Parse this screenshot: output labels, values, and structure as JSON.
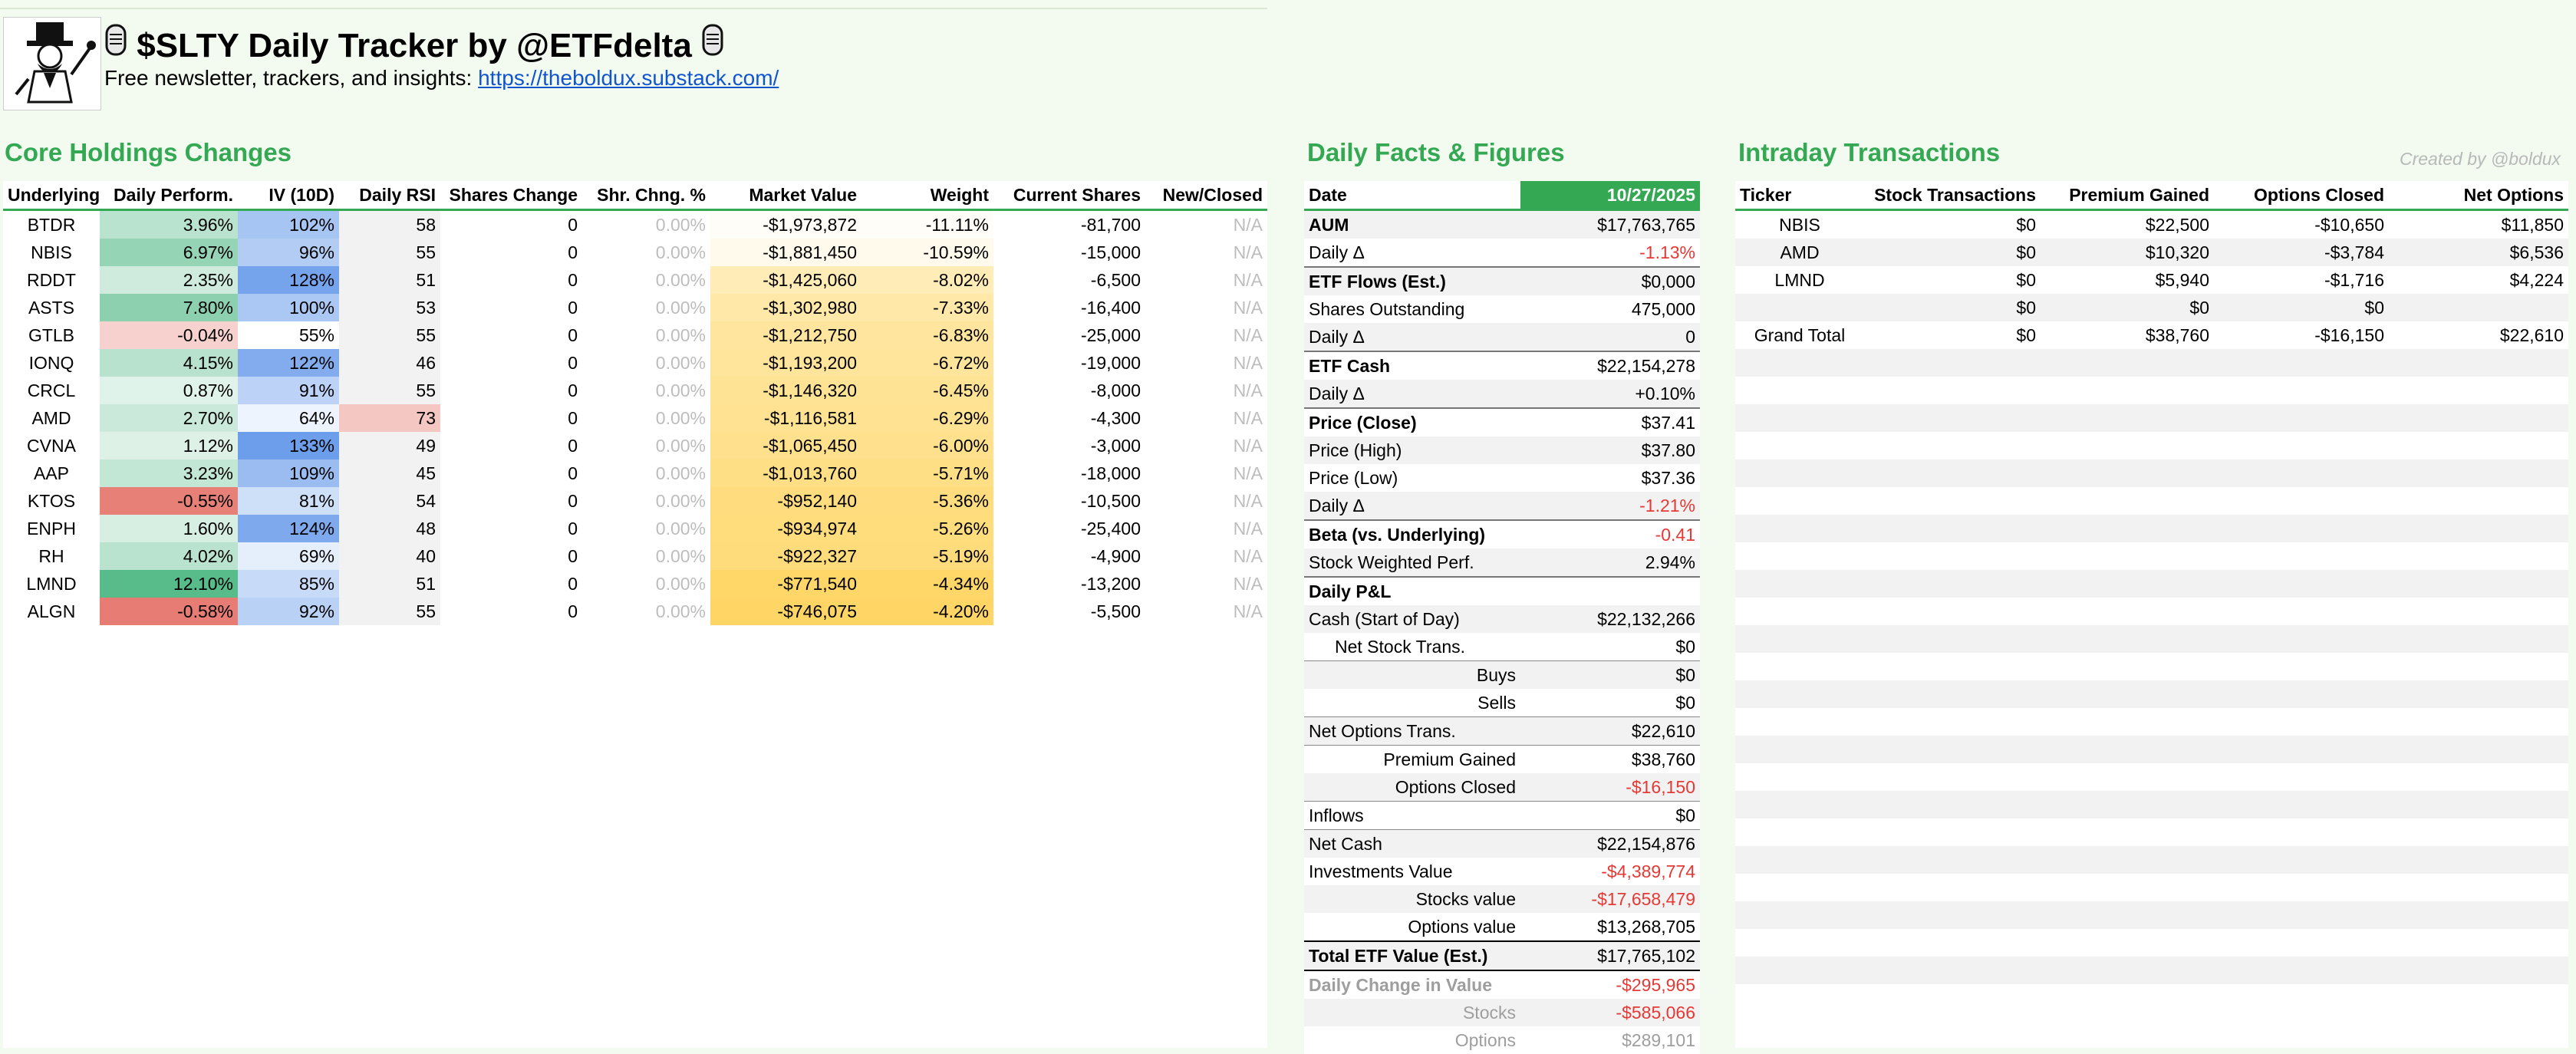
{
  "header": {
    "title": "$SLTY Daily Tracker by @ETFdelta",
    "subtitle_text": "Free newsletter, trackers, and insights: ",
    "subtitle_link": "https://theboldux.substack.com/",
    "logo_icon": "monopoly-man-logo",
    "title_icon": "microphone-icon"
  },
  "core": {
    "title": "Core Holdings Changes",
    "headers": [
      "Underlying",
      "Daily Perform.",
      "IV (10D)",
      "Daily RSI",
      "Shares Change",
      "Shr. Chng. %",
      "Market Value",
      "Weight",
      "Current Shares",
      "New/Closed"
    ],
    "rows": [
      {
        "ticker": "BTDR",
        "perf": "3.96%",
        "perf_num": 3.96,
        "iv": "102%",
        "iv_num": 102,
        "rsi": "58",
        "rsi_num": 58,
        "shares_change": "0",
        "shr_pct": "0.00%",
        "mv": "-$1,973,872",
        "weight": "-11.11%",
        "weight_num": 11.11,
        "shares": "-81,700",
        "newclosed": "N/A"
      },
      {
        "ticker": "NBIS",
        "perf": "6.97%",
        "perf_num": 6.97,
        "iv": "96%",
        "iv_num": 96,
        "rsi": "55",
        "rsi_num": 55,
        "shares_change": "0",
        "shr_pct": "0.00%",
        "mv": "-$1,881,450",
        "weight": "-10.59%",
        "weight_num": 10.59,
        "shares": "-15,000",
        "newclosed": "N/A"
      },
      {
        "ticker": "RDDT",
        "perf": "2.35%",
        "perf_num": 2.35,
        "iv": "128%",
        "iv_num": 128,
        "rsi": "51",
        "rsi_num": 51,
        "shares_change": "0",
        "shr_pct": "0.00%",
        "mv": "-$1,425,060",
        "weight": "-8.02%",
        "weight_num": 8.02,
        "shares": "-6,500",
        "newclosed": "N/A"
      },
      {
        "ticker": "ASTS",
        "perf": "7.80%",
        "perf_num": 7.8,
        "iv": "100%",
        "iv_num": 100,
        "rsi": "53",
        "rsi_num": 53,
        "shares_change": "0",
        "shr_pct": "0.00%",
        "mv": "-$1,302,980",
        "weight": "-7.33%",
        "weight_num": 7.33,
        "shares": "-16,400",
        "newclosed": "N/A"
      },
      {
        "ticker": "GTLB",
        "perf": "-0.04%",
        "perf_num": -0.04,
        "iv": "55%",
        "iv_num": 55,
        "rsi": "55",
        "rsi_num": 55,
        "shares_change": "0",
        "shr_pct": "0.00%",
        "mv": "-$1,212,750",
        "weight": "-6.83%",
        "weight_num": 6.83,
        "shares": "-25,000",
        "newclosed": "N/A"
      },
      {
        "ticker": "IONQ",
        "perf": "4.15%",
        "perf_num": 4.15,
        "iv": "122%",
        "iv_num": 122,
        "rsi": "46",
        "rsi_num": 46,
        "shares_change": "0",
        "shr_pct": "0.00%",
        "mv": "-$1,193,200",
        "weight": "-6.72%",
        "weight_num": 6.72,
        "shares": "-19,000",
        "newclosed": "N/A"
      },
      {
        "ticker": "CRCL",
        "perf": "0.87%",
        "perf_num": 0.87,
        "iv": "91%",
        "iv_num": 91,
        "rsi": "55",
        "rsi_num": 55,
        "shares_change": "0",
        "shr_pct": "0.00%",
        "mv": "-$1,146,320",
        "weight": "-6.45%",
        "weight_num": 6.45,
        "shares": "-8,000",
        "newclosed": "N/A"
      },
      {
        "ticker": "AMD",
        "perf": "2.70%",
        "perf_num": 2.7,
        "iv": "64%",
        "iv_num": 64,
        "rsi": "73",
        "rsi_num": 73,
        "shares_change": "0",
        "shr_pct": "0.00%",
        "mv": "-$1,116,581",
        "weight": "-6.29%",
        "weight_num": 6.29,
        "shares": "-4,300",
        "newclosed": "N/A"
      },
      {
        "ticker": "CVNA",
        "perf": "1.12%",
        "perf_num": 1.12,
        "iv": "133%",
        "iv_num": 133,
        "rsi": "49",
        "rsi_num": 49,
        "shares_change": "0",
        "shr_pct": "0.00%",
        "mv": "-$1,065,450",
        "weight": "-6.00%",
        "weight_num": 6.0,
        "shares": "-3,000",
        "newclosed": "N/A"
      },
      {
        "ticker": "AAP",
        "perf": "3.23%",
        "perf_num": 3.23,
        "iv": "109%",
        "iv_num": 109,
        "rsi": "45",
        "rsi_num": 45,
        "shares_change": "0",
        "shr_pct": "0.00%",
        "mv": "-$1,013,760",
        "weight": "-5.71%",
        "weight_num": 5.71,
        "shares": "-18,000",
        "newclosed": "N/A"
      },
      {
        "ticker": "KTOS",
        "perf": "-0.55%",
        "perf_num": -0.55,
        "iv": "81%",
        "iv_num": 81,
        "rsi": "54",
        "rsi_num": 54,
        "shares_change": "0",
        "shr_pct": "0.00%",
        "mv": "-$952,140",
        "weight": "-5.36%",
        "weight_num": 5.36,
        "shares": "-10,500",
        "newclosed": "N/A"
      },
      {
        "ticker": "ENPH",
        "perf": "1.60%",
        "perf_num": 1.6,
        "iv": "124%",
        "iv_num": 124,
        "rsi": "48",
        "rsi_num": 48,
        "shares_change": "0",
        "shr_pct": "0.00%",
        "mv": "-$934,974",
        "weight": "-5.26%",
        "weight_num": 5.26,
        "shares": "-25,400",
        "newclosed": "N/A"
      },
      {
        "ticker": "RH",
        "perf": "4.02%",
        "perf_num": 4.02,
        "iv": "69%",
        "iv_num": 69,
        "rsi": "40",
        "rsi_num": 40,
        "shares_change": "0",
        "shr_pct": "0.00%",
        "mv": "-$922,327",
        "weight": "-5.19%",
        "weight_num": 5.19,
        "shares": "-4,900",
        "newclosed": "N/A"
      },
      {
        "ticker": "LMND",
        "perf": "12.10%",
        "perf_num": 12.1,
        "iv": "85%",
        "iv_num": 85,
        "rsi": "51",
        "rsi_num": 51,
        "shares_change": "0",
        "shr_pct": "0.00%",
        "mv": "-$771,540",
        "weight": "-4.34%",
        "weight_num": 4.34,
        "shares": "-13,200",
        "newclosed": "N/A"
      },
      {
        "ticker": "ALGN",
        "perf": "-0.58%",
        "perf_num": -0.58,
        "iv": "92%",
        "iv_num": 92,
        "rsi": "55",
        "rsi_num": 55,
        "shares_change": "0",
        "shr_pct": "0.00%",
        "mv": "-$746,075",
        "weight": "-4.20%",
        "weight_num": 4.2,
        "shares": "-5,500",
        "newclosed": "N/A"
      }
    ]
  },
  "facts": {
    "title": "Daily Facts & Figures",
    "date_label": "Date",
    "date_value": "10/27/2025",
    "rows": [
      {
        "label": "AUM",
        "value": "$17,763,765",
        "style": "bold",
        "sep": "thick"
      },
      {
        "label": "Daily Δ",
        "value": "-1.13%",
        "vstyle": "red"
      },
      {
        "label": "ETF Flows (Est.)",
        "value": "$0,000",
        "style": "bold",
        "sep": "thick"
      },
      {
        "label": "Shares Outstanding",
        "value": "475,000"
      },
      {
        "label": "Daily Δ",
        "value": "0"
      },
      {
        "label": "ETF Cash",
        "value": "$22,154,278",
        "style": "bold",
        "sep": "thick"
      },
      {
        "label": "Daily Δ",
        "value": "+0.10%"
      },
      {
        "label": "Price (Close)",
        "value": "$37.41",
        "style": "bold",
        "sep": "thick"
      },
      {
        "label": "Price (High)",
        "value": "$37.80"
      },
      {
        "label": "Price (Low)",
        "value": "$37.36"
      },
      {
        "label": "Daily Δ",
        "value": "-1.21%",
        "vstyle": "red"
      },
      {
        "label": "Beta (vs. Underlying)",
        "value": "-0.41",
        "style": "bold",
        "vstyle": "red",
        "sep": "thick"
      },
      {
        "label": "Stock Weighted Perf.",
        "value": "2.94%"
      },
      {
        "label": "Daily P&L",
        "value": "",
        "style": "bold",
        "sep": "thick"
      },
      {
        "label": "Cash (Start of Day)",
        "value": "$22,132,266"
      },
      {
        "label": "Net Stock Trans.",
        "value": "$0",
        "indent": "1"
      },
      {
        "label": "Buys",
        "value": "$0",
        "indent": "2",
        "sep": "thin"
      },
      {
        "label": "Sells",
        "value": "$0",
        "indent": "2"
      },
      {
        "label": "Net Options Trans.",
        "value": "$22,610",
        "sep": "thin"
      },
      {
        "label": "Premium Gained",
        "value": "$38,760",
        "indent": "2",
        "sep": "thin"
      },
      {
        "label": "Options Closed",
        "value": "-$16,150",
        "indent": "2",
        "vstyle": "red"
      },
      {
        "label": "Inflows",
        "value": "$0",
        "sep": "thin"
      },
      {
        "label": "Net Cash",
        "value": "$22,154,876",
        "sep": "thin"
      },
      {
        "label": "Investments Value",
        "value": "-$4,389,774",
        "vstyle": "red"
      },
      {
        "label": "Stocks value",
        "value": "-$17,658,479",
        "indent": "2",
        "vstyle": "red"
      },
      {
        "label": "Options value",
        "value": "$13,268,705",
        "indent": "2"
      },
      {
        "label": "Total ETF Value (Est.)",
        "value": "$17,765,102",
        "style": "bold",
        "sep": "total"
      },
      {
        "label": "Daily Change in Value",
        "value": "-$295,965",
        "style": "greybold",
        "vstyle": "red"
      },
      {
        "label": "Stocks",
        "value": "-$585,066",
        "indent": "2",
        "style": "grey",
        "vstyle": "red"
      },
      {
        "label": "Options",
        "value": "$289,101",
        "indent": "2",
        "style": "grey",
        "vstyle": "grey"
      }
    ]
  },
  "intraday": {
    "title": "Intraday Transactions",
    "created_by": "Created by @boldux",
    "headers": [
      "Ticker",
      "Stock Transactions",
      "Premium Gained",
      "Options Closed",
      "Net Options"
    ],
    "rows": [
      {
        "ticker": "NBIS",
        "stock": "$0",
        "premium": "$22,500",
        "closed": "-$10,650",
        "net": "$11,850"
      },
      {
        "ticker": "AMD",
        "stock": "$0",
        "premium": "$10,320",
        "closed": "-$3,784",
        "net": "$6,536"
      },
      {
        "ticker": "LMND",
        "stock": "$0",
        "premium": "$5,940",
        "closed": "-$1,716",
        "net": "$4,224"
      },
      {
        "ticker": "",
        "stock": "$0",
        "premium": "$0",
        "closed": "$0",
        "net": ""
      },
      {
        "ticker": "Grand Total",
        "stock": "$0",
        "premium": "$38,760",
        "closed": "-$16,150",
        "net": "$22,610"
      }
    ]
  },
  "colors": {
    "accent_green": "#34a853",
    "link_blue": "#1155cc",
    "negative_red": "#e53935",
    "perf_green": "#57bb8a",
    "perf_red": "#e67c73",
    "iv_blue": "#6d9eeb",
    "weight_gold": "#ffd666",
    "rsi_pink": "#f4c7c3"
  }
}
